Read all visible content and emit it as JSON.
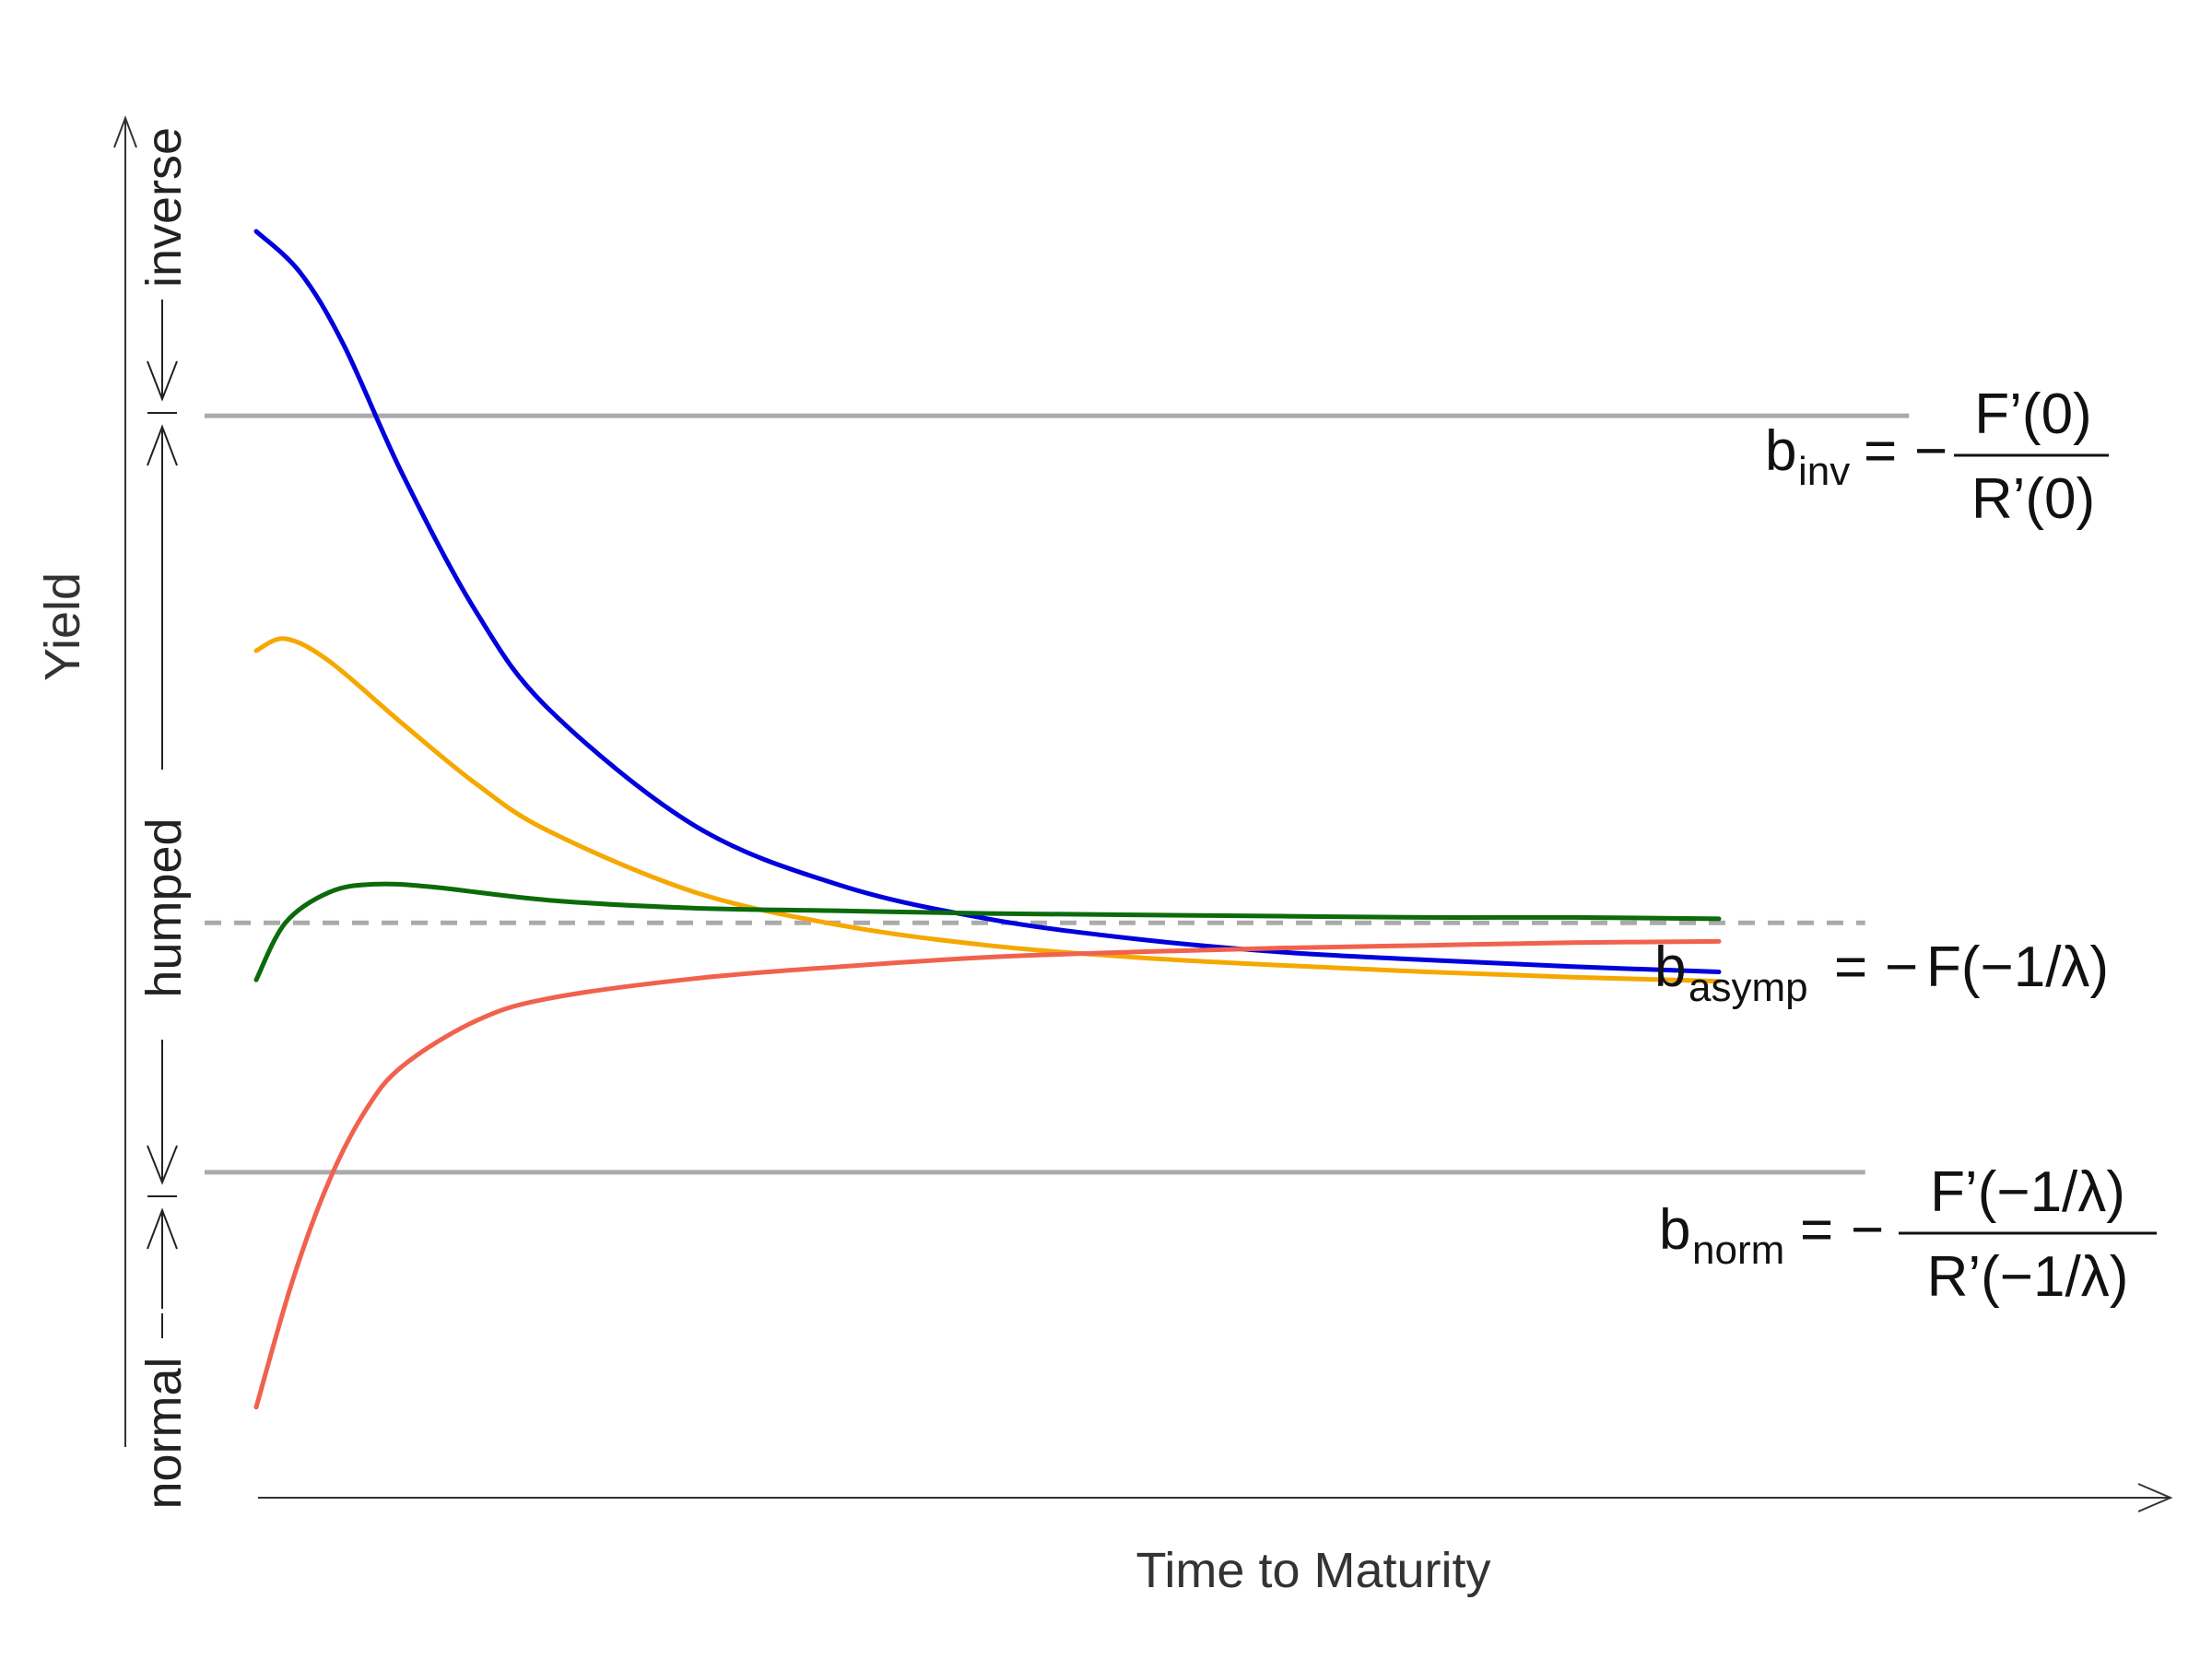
{
  "chart_data": {
    "type": "line",
    "xlabel": "Time to Maturity",
    "ylabel": "Yield",
    "x_ticks": [],
    "y_ticks": [],
    "grid": false,
    "legend": "none",
    "ylim": [
      0.0,
      1.0
    ],
    "xlim": [
      0.0,
      10.0
    ],
    "series": [
      {
        "color": "#0000dd",
        "x": [
          0,
          0.3,
          0.6,
          1,
          1.5,
          2,
          3,
          4,
          5,
          6,
          7,
          8,
          9,
          10
        ],
        "y": [
          0.916,
          0.885,
          0.83,
          0.733,
          0.63,
          0.556,
          0.468,
          0.423,
          0.398,
          0.383,
          0.373,
          0.367,
          0.362,
          0.358
        ]
      },
      {
        "color": "#f5a800",
        "x": [
          0,
          0.2,
          0.5,
          1,
          1.5,
          2,
          3,
          4,
          5,
          6,
          7,
          8,
          9,
          10
        ],
        "y": [
          0.6,
          0.609,
          0.592,
          0.545,
          0.5,
          0.464,
          0.418,
          0.393,
          0.378,
          0.369,
          0.363,
          0.358,
          0.354,
          0.351
        ]
      },
      {
        "color": "#0b6b0b",
        "x": [
          0,
          0.2,
          0.5,
          0.8,
          1.2,
          2,
          3,
          4,
          5,
          6,
          7,
          8,
          9,
          10
        ],
        "y": [
          0.352,
          0.395,
          0.418,
          0.424,
          0.422,
          0.412,
          0.406,
          0.404,
          0.402,
          0.401,
          0.4,
          0.399,
          0.399,
          0.398
        ]
      },
      {
        "color": "#f0624d",
        "x": [
          0,
          0.25,
          0.5,
          0.75,
          1,
          1.5,
          2,
          3,
          4,
          5,
          6,
          7,
          8,
          9,
          10
        ],
        "y": [
          0.03,
          0.126,
          0.201,
          0.254,
          0.287,
          0.321,
          0.338,
          0.353,
          0.362,
          0.369,
          0.373,
          0.376,
          0.378,
          0.38,
          0.381
        ]
      }
    ],
    "reference_lines": [
      {
        "y": 0.777,
        "style": "solid",
        "color": "#aaaaaa",
        "x_end": 11.3
      },
      {
        "y": 0.395,
        "style": "dashed",
        "color": "#aaaaaa",
        "x_end": 11.0
      },
      {
        "y": 0.207,
        "style": "solid",
        "color": "#aaaaaa",
        "x_end": 11.0
      }
    ],
    "regions": [
      "inverse",
      "humped",
      "normal"
    ]
  },
  "equations": {
    "inv": {
      "base": "b",
      "sub": "inv",
      "rel": "=",
      "minus": "−",
      "num": "F’(0)",
      "den": "R’(0)"
    },
    "asymp": {
      "base": "b",
      "sub": "asymp",
      "rel": "=",
      "minus": "−",
      "rhs": "F(−1/λ)"
    },
    "norm": {
      "base": "b",
      "sub": "norm",
      "rel": "=",
      "minus": "−",
      "num": "F’(−1/λ)",
      "den": "R’(−1/λ)"
    }
  }
}
